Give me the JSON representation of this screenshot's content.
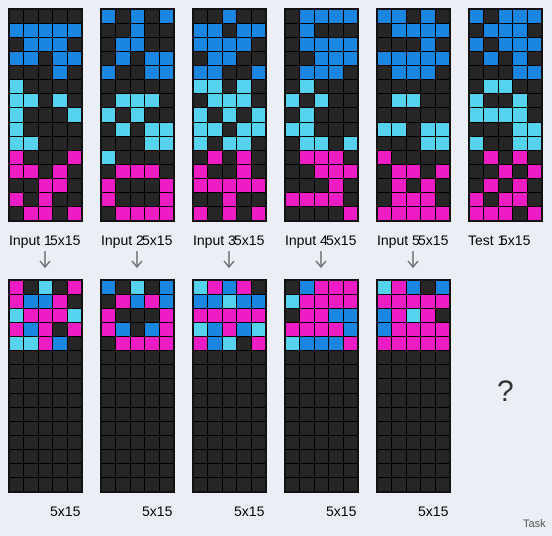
{
  "colors": {
    "0": "#262626",
    "1": "#1b86e0",
    "8": "#55d3ee",
    "6": "#ee1cc4"
  },
  "pairs": [
    {
      "input_label": "Input 1",
      "input_size": "5x15",
      "output_size": "5x15",
      "input": [
        [
          0,
          0,
          0,
          0,
          0
        ],
        [
          1,
          1,
          1,
          1,
          1
        ],
        [
          0,
          1,
          1,
          1,
          0
        ],
        [
          1,
          1,
          0,
          1,
          1
        ],
        [
          0,
          0,
          0,
          1,
          0
        ],
        [
          8,
          0,
          0,
          0,
          0
        ],
        [
          8,
          8,
          0,
          8,
          0
        ],
        [
          8,
          0,
          0,
          0,
          8
        ],
        [
          8,
          0,
          0,
          0,
          0
        ],
        [
          8,
          8,
          0,
          0,
          0
        ],
        [
          6,
          0,
          0,
          0,
          6
        ],
        [
          6,
          6,
          0,
          6,
          0
        ],
        [
          0,
          0,
          6,
          6,
          0
        ],
        [
          6,
          0,
          6,
          0,
          0
        ],
        [
          0,
          6,
          6,
          0,
          6
        ]
      ],
      "output": [
        [
          6,
          0,
          8,
          0,
          6
        ],
        [
          6,
          1,
          1,
          6,
          0
        ],
        [
          8,
          6,
          6,
          6,
          8
        ],
        [
          6,
          1,
          6,
          0,
          6
        ],
        [
          8,
          8,
          6,
          1,
          0
        ],
        [
          0,
          0,
          0,
          0,
          0
        ],
        [
          0,
          0,
          0,
          0,
          0
        ],
        [
          0,
          0,
          0,
          0,
          0
        ],
        [
          0,
          0,
          0,
          0,
          0
        ],
        [
          0,
          0,
          0,
          0,
          0
        ],
        [
          0,
          0,
          0,
          0,
          0
        ],
        [
          0,
          0,
          0,
          0,
          0
        ],
        [
          0,
          0,
          0,
          0,
          0
        ],
        [
          0,
          0,
          0,
          0,
          0
        ],
        [
          0,
          0,
          0,
          0,
          0
        ]
      ]
    },
    {
      "input_label": "Input 2",
      "input_size": "5x15",
      "output_size": "5x15",
      "input": [
        [
          1,
          0,
          1,
          0,
          1
        ],
        [
          0,
          0,
          1,
          0,
          0
        ],
        [
          0,
          1,
          1,
          0,
          0
        ],
        [
          0,
          1,
          0,
          1,
          1
        ],
        [
          1,
          0,
          0,
          1,
          1
        ],
        [
          0,
          0,
          0,
          0,
          0
        ],
        [
          0,
          8,
          8,
          8,
          0
        ],
        [
          8,
          0,
          8,
          0,
          0
        ],
        [
          0,
          8,
          0,
          8,
          8
        ],
        [
          0,
          0,
          0,
          8,
          8
        ],
        [
          8,
          0,
          0,
          0,
          0
        ],
        [
          0,
          6,
          6,
          6,
          0
        ],
        [
          6,
          0,
          0,
          0,
          6
        ],
        [
          6,
          0,
          0,
          0,
          6
        ],
        [
          0,
          6,
          6,
          6,
          6
        ]
      ],
      "output": [
        [
          1,
          0,
          8,
          0,
          1
        ],
        [
          0,
          6,
          1,
          6,
          1
        ],
        [
          6,
          0,
          0,
          0,
          6
        ],
        [
          6,
          1,
          0,
          1,
          6
        ],
        [
          0,
          6,
          6,
          6,
          6
        ],
        [
          0,
          0,
          0,
          0,
          0
        ],
        [
          0,
          0,
          0,
          0,
          0
        ],
        [
          0,
          0,
          0,
          0,
          0
        ],
        [
          0,
          0,
          0,
          0,
          0
        ],
        [
          0,
          0,
          0,
          0,
          0
        ],
        [
          0,
          0,
          0,
          0,
          0
        ],
        [
          0,
          0,
          0,
          0,
          0
        ],
        [
          0,
          0,
          0,
          0,
          0
        ],
        [
          0,
          0,
          0,
          0,
          0
        ],
        [
          0,
          0,
          0,
          0,
          0
        ]
      ]
    },
    {
      "input_label": "Input 3",
      "input_size": "5x15",
      "output_size": "5x15",
      "input": [
        [
          0,
          0,
          1,
          0,
          0
        ],
        [
          1,
          1,
          0,
          1,
          1
        ],
        [
          1,
          1,
          1,
          1,
          0
        ],
        [
          0,
          1,
          1,
          0,
          0
        ],
        [
          1,
          1,
          0,
          0,
          1
        ],
        [
          8,
          8,
          0,
          8,
          0
        ],
        [
          0,
          8,
          8,
          8,
          0
        ],
        [
          8,
          0,
          8,
          0,
          8
        ],
        [
          8,
          8,
          0,
          8,
          8
        ],
        [
          8,
          0,
          8,
          8,
          0
        ],
        [
          0,
          6,
          0,
          6,
          0
        ],
        [
          6,
          0,
          0,
          6,
          0
        ],
        [
          6,
          6,
          6,
          6,
          6
        ],
        [
          0,
          0,
          6,
          0,
          0
        ],
        [
          6,
          0,
          6,
          0,
          6
        ]
      ],
      "output": [
        [
          8,
          6,
          1,
          6,
          0
        ],
        [
          1,
          1,
          8,
          1,
          1
        ],
        [
          6,
          6,
          6,
          6,
          6
        ],
        [
          8,
          1,
          6,
          1,
          8
        ],
        [
          6,
          1,
          8,
          0,
          6
        ],
        [
          0,
          0,
          0,
          0,
          0
        ],
        [
          0,
          0,
          0,
          0,
          0
        ],
        [
          0,
          0,
          0,
          0,
          0
        ],
        [
          0,
          0,
          0,
          0,
          0
        ],
        [
          0,
          0,
          0,
          0,
          0
        ],
        [
          0,
          0,
          0,
          0,
          0
        ],
        [
          0,
          0,
          0,
          0,
          0
        ],
        [
          0,
          0,
          0,
          0,
          0
        ],
        [
          0,
          0,
          0,
          0,
          0
        ],
        [
          0,
          0,
          0,
          0,
          0
        ]
      ]
    },
    {
      "input_label": "Input 4",
      "input_size": "5x15",
      "output_size": "5x15",
      "input": [
        [
          0,
          1,
          1,
          1,
          1
        ],
        [
          0,
          1,
          0,
          0,
          0
        ],
        [
          0,
          1,
          1,
          1,
          1
        ],
        [
          0,
          0,
          1,
          1,
          1
        ],
        [
          0,
          1,
          1,
          1,
          0
        ],
        [
          0,
          8,
          0,
          0,
          0
        ],
        [
          8,
          0,
          8,
          0,
          0
        ],
        [
          0,
          8,
          0,
          0,
          0
        ],
        [
          8,
          8,
          0,
          0,
          0
        ],
        [
          0,
          8,
          8,
          0,
          8
        ],
        [
          0,
          6,
          6,
          6,
          0
        ],
        [
          0,
          0,
          6,
          6,
          6
        ],
        [
          0,
          0,
          0,
          6,
          0
        ],
        [
          6,
          6,
          6,
          6,
          0
        ],
        [
          0,
          0,
          0,
          0,
          6
        ]
      ],
      "output": [
        [
          0,
          1,
          6,
          6,
          6
        ],
        [
          8,
          6,
          6,
          6,
          6
        ],
        [
          0,
          6,
          6,
          1,
          1
        ],
        [
          6,
          6,
          6,
          6,
          1
        ],
        [
          8,
          1,
          1,
          1,
          6
        ],
        [
          0,
          0,
          0,
          0,
          0
        ],
        [
          0,
          0,
          0,
          0,
          0
        ],
        [
          0,
          0,
          0,
          0,
          0
        ],
        [
          0,
          0,
          0,
          0,
          0
        ],
        [
          0,
          0,
          0,
          0,
          0
        ],
        [
          0,
          0,
          0,
          0,
          0
        ],
        [
          0,
          0,
          0,
          0,
          0
        ],
        [
          0,
          0,
          0,
          0,
          0
        ],
        [
          0,
          0,
          0,
          0,
          0
        ],
        [
          0,
          0,
          0,
          0,
          0
        ]
      ]
    },
    {
      "input_label": "Input 5",
      "input_size": "5x15",
      "output_size": "5x15",
      "input": [
        [
          1,
          1,
          0,
          1,
          0
        ],
        [
          0,
          1,
          1,
          1,
          1
        ],
        [
          0,
          0,
          0,
          1,
          0
        ],
        [
          1,
          1,
          1,
          1,
          1
        ],
        [
          0,
          1,
          1,
          1,
          0
        ],
        [
          0,
          0,
          0,
          0,
          0
        ],
        [
          0,
          8,
          8,
          0,
          0
        ],
        [
          0,
          0,
          0,
          0,
          0
        ],
        [
          8,
          8,
          0,
          8,
          8
        ],
        [
          0,
          0,
          0,
          8,
          8
        ],
        [
          6,
          0,
          0,
          0,
          0
        ],
        [
          0,
          6,
          6,
          0,
          6
        ],
        [
          0,
          6,
          0,
          6,
          0
        ],
        [
          0,
          6,
          6,
          6,
          0
        ],
        [
          6,
          6,
          6,
          6,
          6
        ]
      ],
      "output": [
        [
          8,
          6,
          1,
          0,
          1
        ],
        [
          6,
          6,
          6,
          6,
          6
        ],
        [
          1,
          6,
          8,
          6,
          0
        ],
        [
          1,
          6,
          6,
          6,
          6
        ],
        [
          6,
          6,
          6,
          6,
          6
        ],
        [
          0,
          0,
          0,
          0,
          0
        ],
        [
          0,
          0,
          0,
          0,
          0
        ],
        [
          0,
          0,
          0,
          0,
          0
        ],
        [
          0,
          0,
          0,
          0,
          0
        ],
        [
          0,
          0,
          0,
          0,
          0
        ],
        [
          0,
          0,
          0,
          0,
          0
        ],
        [
          0,
          0,
          0,
          0,
          0
        ],
        [
          0,
          0,
          0,
          0,
          0
        ],
        [
          0,
          0,
          0,
          0,
          0
        ],
        [
          0,
          0,
          0,
          0,
          0
        ]
      ]
    }
  ],
  "test": {
    "label": "Test 1",
    "size": "5x15",
    "input": [
      [
        1,
        0,
        1,
        1,
        1
      ],
      [
        0,
        1,
        1,
        1,
        0
      ],
      [
        1,
        0,
        1,
        1,
        1
      ],
      [
        0,
        1,
        0,
        1,
        0
      ],
      [
        0,
        0,
        0,
        1,
        1
      ],
      [
        0,
        8,
        8,
        0,
        0
      ],
      [
        8,
        0,
        0,
        8,
        0
      ],
      [
        8,
        8,
        8,
        8,
        0
      ],
      [
        0,
        0,
        0,
        8,
        8
      ],
      [
        8,
        0,
        0,
        8,
        8
      ],
      [
        0,
        6,
        0,
        6,
        0
      ],
      [
        0,
        0,
        6,
        0,
        6
      ],
      [
        0,
        6,
        0,
        6,
        0
      ],
      [
        6,
        0,
        6,
        6,
        0
      ],
      [
        6,
        6,
        6,
        0,
        6
      ]
    ],
    "output_placeholder": "?"
  },
  "footer": {
    "task_label": "Task"
  }
}
